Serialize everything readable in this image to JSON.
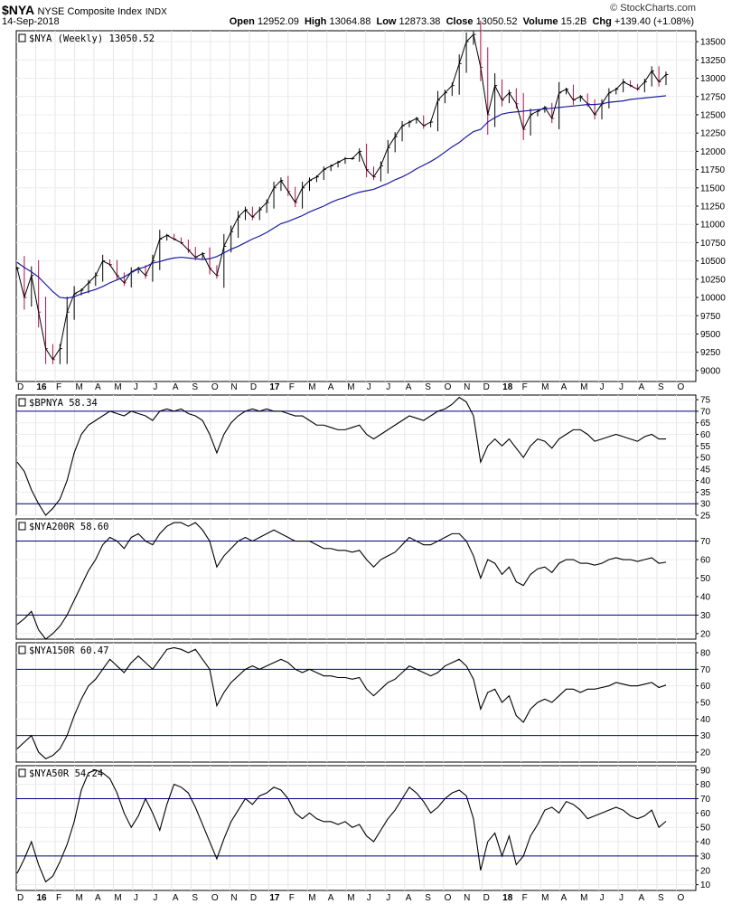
{
  "header": {
    "symbol": "$NYA",
    "name": "NYSE Composite Index",
    "exchange": "INDX",
    "date": "14-Sep-2018",
    "ohlc": [
      {
        "label": "Open",
        "value": "12952.09"
      },
      {
        "label": "High",
        "value": "13064.88"
      },
      {
        "label": "Low",
        "value": "12873.38"
      },
      {
        "label": "Close",
        "value": "13050.52"
      },
      {
        "label": "Volume",
        "value": "15.2B"
      },
      {
        "label": "Chg",
        "value": "+139.40 (+1.08%)"
      }
    ],
    "logo": "© StockCharts.com"
  },
  "x_axis_labels": [
    "D",
    "16",
    "F",
    "M",
    "A",
    "M",
    "J",
    "J",
    "A",
    "S",
    "O",
    "N",
    "D",
    "17",
    "F",
    "M",
    "A",
    "M",
    "J",
    "J",
    "A",
    "S",
    "O",
    "N",
    "D",
    "18",
    "F",
    "M",
    "A",
    "M",
    "J",
    "J",
    "A",
    "S",
    "O"
  ],
  "chart_data": [
    {
      "type": "line",
      "title": "$NYA (Weekly) 13050.52",
      "style": "price-bars-with-moving-average",
      "y_ticks": [
        9000,
        9250,
        9500,
        9750,
        10000,
        10250,
        10500,
        10750,
        11000,
        11250,
        11500,
        11750,
        12000,
        12250,
        12500,
        12750,
        13000,
        13250,
        13500
      ],
      "ylim": [
        8850,
        13650
      ],
      "series": [
        {
          "values": [
            10400,
            10000,
            10300,
            9800,
            9300,
            9150,
            9300,
            9800,
            10050,
            10100,
            10200,
            10300,
            10500,
            10450,
            10300,
            10200,
            10350,
            10400,
            10300,
            10500,
            10800,
            10850,
            10800,
            10750,
            10650,
            10550,
            10600,
            10400,
            10300,
            10700,
            10900,
            11100,
            11200,
            11100,
            11200,
            11300,
            11500,
            11600,
            11450,
            11300,
            11500,
            11600,
            11650,
            11750,
            11800,
            11850,
            11900,
            11900,
            12000,
            11750,
            11650,
            11800,
            12050,
            12200,
            12350,
            12400,
            12450,
            12350,
            12400,
            12700,
            12800,
            12900,
            13200,
            13500,
            13600,
            13150,
            12500,
            12900,
            12700,
            12800,
            12650,
            12300,
            12500,
            12550,
            12600,
            12450,
            12800,
            12850,
            12700,
            12750,
            12650,
            12500,
            12650,
            12800,
            12850,
            12950,
            12900,
            12850,
            12950,
            13100,
            12950,
            13050
          ]
        },
        {
          "values": [
            10480,
            10410,
            10350,
            10280,
            10180,
            10080,
            10000,
            9990,
            10010,
            10050,
            10080,
            10110,
            10150,
            10200,
            10240,
            10280,
            10340,
            10390,
            10420,
            10470,
            10490,
            10520,
            10540,
            10550,
            10540,
            10530,
            10520,
            10530,
            10560,
            10610,
            10660,
            10700,
            10750,
            10800,
            10840,
            10890,
            10950,
            11010,
            11040,
            11080,
            11120,
            11170,
            11210,
            11250,
            11300,
            11340,
            11370,
            11410,
            11440,
            11460,
            11480,
            11520,
            11560,
            11610,
            11650,
            11700,
            11760,
            11810,
            11860,
            11920,
            11990,
            12060,
            12120,
            12200,
            12270,
            12300,
            12400,
            12460,
            12510,
            12530,
            12540,
            12550,
            12560,
            12570,
            12580,
            12590,
            12600,
            12610,
            12620,
            12630,
            12640,
            12640,
            12650,
            12670,
            12680,
            12690,
            12710,
            12720,
            12730,
            12740,
            12750,
            12760
          ]
        }
      ]
    },
    {
      "type": "line",
      "title": "$BPNYA 58.34",
      "y_ticks": [
        25,
        30,
        35,
        40,
        45,
        50,
        55,
        60,
        65,
        70,
        75
      ],
      "ylim": [
        25,
        77
      ],
      "reference_lines": [
        30,
        70
      ],
      "series": [
        {
          "values": [
            48,
            44,
            36,
            30,
            25,
            28,
            32,
            40,
            52,
            60,
            64,
            66,
            68,
            70,
            69,
            68,
            70,
            69,
            68,
            66,
            70,
            71,
            70,
            71,
            69,
            68,
            66,
            60,
            52,
            60,
            65,
            68,
            70,
            71,
            70,
            71,
            70,
            70,
            69,
            68,
            68,
            66,
            64,
            64,
            63,
            62,
            62,
            63,
            64,
            60,
            58,
            60,
            62,
            64,
            66,
            68,
            67,
            66,
            68,
            70,
            71,
            73,
            76,
            74,
            68,
            48,
            55,
            58,
            55,
            58,
            54,
            50,
            55,
            58,
            57,
            54,
            58,
            60,
            62,
            62,
            60,
            57,
            58,
            59,
            60,
            59,
            58,
            57,
            59,
            60,
            58,
            58
          ]
        }
      ]
    },
    {
      "type": "line",
      "title": "$NYA200R 58.60",
      "y_ticks": [
        20,
        30,
        40,
        50,
        60,
        70
      ],
      "ylim": [
        17,
        82
      ],
      "reference_lines": [
        30,
        70
      ],
      "series": [
        {
          "values": [
            25,
            28,
            32,
            22,
            17,
            20,
            24,
            30,
            38,
            46,
            54,
            60,
            68,
            72,
            70,
            66,
            72,
            74,
            70,
            68,
            74,
            78,
            80,
            80,
            78,
            80,
            76,
            70,
            56,
            62,
            66,
            70,
            72,
            70,
            72,
            74,
            76,
            74,
            72,
            70,
            70,
            70,
            68,
            66,
            66,
            65,
            65,
            64,
            65,
            60,
            56,
            60,
            62,
            64,
            68,
            72,
            70,
            68,
            68,
            70,
            72,
            74,
            74,
            70,
            62,
            50,
            60,
            58,
            52,
            56,
            48,
            46,
            52,
            55,
            56,
            53,
            58,
            60,
            60,
            58,
            58,
            57,
            58,
            60,
            61,
            60,
            60,
            59,
            60,
            61,
            58,
            58.6
          ]
        }
      ]
    },
    {
      "type": "line",
      "title": "$NYA150R 60.47",
      "y_ticks": [
        20,
        30,
        40,
        50,
        60,
        70,
        80
      ],
      "ylim": [
        14,
        86
      ],
      "reference_lines": [
        30,
        70
      ],
      "series": [
        {
          "values": [
            22,
            26,
            30,
            20,
            16,
            18,
            22,
            30,
            42,
            52,
            60,
            64,
            70,
            76,
            72,
            68,
            74,
            78,
            74,
            70,
            76,
            82,
            83,
            82,
            80,
            82,
            76,
            70,
            48,
            56,
            62,
            66,
            70,
            72,
            70,
            72,
            74,
            76,
            74,
            70,
            68,
            70,
            68,
            66,
            66,
            65,
            65,
            64,
            65,
            58,
            54,
            58,
            62,
            64,
            68,
            72,
            70,
            68,
            66,
            68,
            72,
            74,
            76,
            72,
            64,
            46,
            56,
            58,
            50,
            54,
            42,
            38,
            46,
            50,
            52,
            50,
            54,
            58,
            58,
            56,
            58,
            58,
            59,
            60,
            62,
            61,
            60,
            60,
            61,
            62,
            59,
            60.47
          ]
        }
      ]
    },
    {
      "type": "line",
      "title": "$NYA50R 54.24",
      "y_ticks": [
        10,
        20,
        30,
        40,
        50,
        60,
        70,
        80,
        90
      ],
      "ylim": [
        6,
        93
      ],
      "reference_lines": [
        30,
        70
      ],
      "series": [
        {
          "values": [
            18,
            28,
            40,
            24,
            12,
            16,
            26,
            38,
            54,
            76,
            88,
            90,
            88,
            84,
            74,
            60,
            50,
            58,
            70,
            60,
            48,
            66,
            80,
            78,
            74,
            64,
            52,
            40,
            28,
            42,
            54,
            62,
            70,
            66,
            72,
            74,
            78,
            76,
            70,
            60,
            56,
            60,
            56,
            54,
            54,
            52,
            54,
            50,
            52,
            44,
            40,
            48,
            56,
            62,
            70,
            78,
            74,
            68,
            60,
            64,
            70,
            74,
            76,
            72,
            56,
            20,
            40,
            46,
            30,
            44,
            24,
            30,
            44,
            52,
            62,
            64,
            60,
            68,
            66,
            62,
            56,
            58,
            60,
            62,
            64,
            62,
            58,
            56,
            58,
            62,
            50,
            54.24
          ]
        }
      ]
    }
  ]
}
